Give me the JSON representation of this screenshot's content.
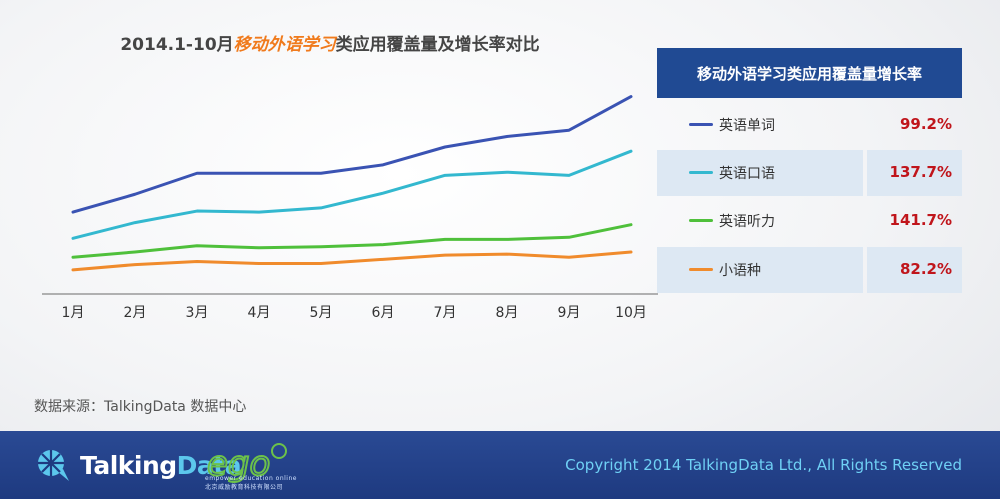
{
  "chart_data": {
    "type": "line",
    "title": {
      "prefix": "2014.1-10月",
      "highlight": "移动外语学习",
      "suffix": "类应用覆盖量及增长率对比"
    },
    "categories": [
      "1月",
      "2月",
      "3月",
      "4月",
      "5月",
      "6月",
      "7月",
      "8月",
      "9月",
      "10月"
    ],
    "series": [
      {
        "name": "英语单词",
        "color": "#3a53b3",
        "growth": "99.2%",
        "values": [
          78,
          95,
          115,
          115,
          115,
          123,
          140,
          150,
          156,
          188
        ]
      },
      {
        "name": "英语口语",
        "color": "#33b8cf",
        "growth": "137.7%",
        "values": [
          53,
          68,
          79,
          78,
          82,
          96,
          113,
          116,
          113,
          136
        ]
      },
      {
        "name": "英语听力",
        "color": "#4fc03b",
        "growth": "141.7%",
        "values": [
          35,
          40,
          46,
          44,
          45,
          47,
          52,
          52,
          54,
          66
        ]
      },
      {
        "name": "小语种",
        "color": "#f08b2c",
        "growth": "82.2%",
        "values": [
          23,
          28,
          31,
          29,
          29,
          33,
          37,
          38,
          35,
          40
        ]
      }
    ],
    "ylim": [
      0,
      200
    ],
    "xlabel": "",
    "ylabel": "",
    "legend_title": "移动外语学习类应用覆盖量增长率"
  },
  "source": "数据来源：TalkingData 数据中心",
  "footer": {
    "brand_main": "Talking",
    "brand_accent": "Data",
    "ego_tagline": "empower education online",
    "ego_sub": "北京威励教育科技有限公司",
    "copyright": "Copyright 2014 TalkingData Ltd., All Rights Reserved"
  }
}
